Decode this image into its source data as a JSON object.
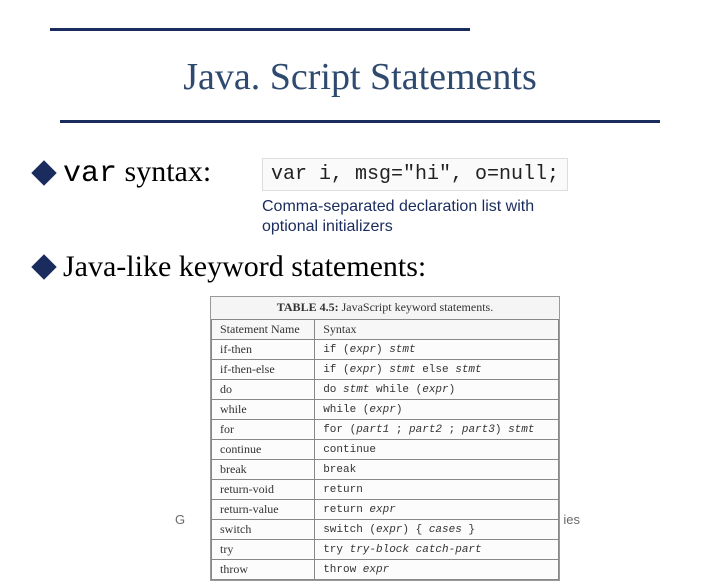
{
  "title": "Java. Script Statements",
  "bullet1_prefix": "var",
  "bullet1_rest": " syntax:",
  "code_example": "var i, msg=\"hi\", o=null;",
  "note_line1": "Comma-separated declaration list with",
  "note_line2": "optional initializers",
  "bullet2": "Java-like keyword statements:",
  "table": {
    "caption_prefix": "TABLE 4.5:",
    "caption_rest": " JavaScript keyword statements.",
    "header": [
      "Statement Name",
      "Syntax"
    ],
    "rows": [
      [
        "if-then",
        "if (expr) stmt"
      ],
      [
        "if-then-else",
        "if (expr) stmt else stmt"
      ],
      [
        "do",
        "do stmt while (expr)"
      ],
      [
        "while",
        "while (expr)"
      ],
      [
        "for",
        "for (part1 ; part2 ; part3) stmt"
      ],
      [
        "continue",
        "continue"
      ],
      [
        "break",
        "break"
      ],
      [
        "return-void",
        "return"
      ],
      [
        "return-value",
        "return expr"
      ],
      [
        "switch",
        "switch (expr) { cases }"
      ],
      [
        "try",
        "try try-block catch-part"
      ],
      [
        "throw",
        "throw expr"
      ]
    ]
  },
  "footer_left": "G",
  "footer_right": "ies",
  "colors": {
    "title": "#2f4a6f",
    "rule": "#1a2b5e",
    "note": "#1a2b5e"
  }
}
